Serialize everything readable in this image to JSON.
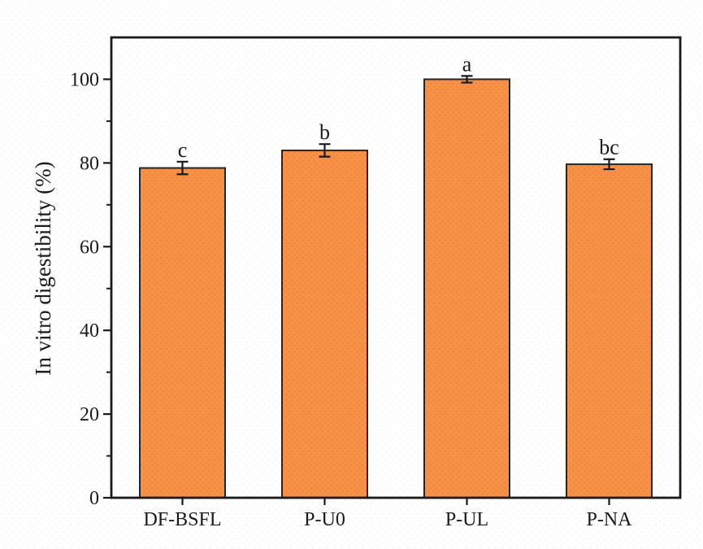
{
  "chart_data": {
    "type": "bar",
    "title": "",
    "xlabel": "",
    "ylabel": "In vitro digestibility (%)",
    "categories": [
      "DF-BSFL",
      "P-U0",
      "P-UL",
      "P-NA"
    ],
    "values": [
      78.8,
      83.0,
      100.0,
      79.7
    ],
    "errors": [
      1.5,
      1.5,
      0.8,
      1.2
    ],
    "significance_letters": [
      "c",
      "b",
      "a",
      "bc"
    ],
    "ylim": [
      0,
      110
    ],
    "yticks_major": [
      0,
      20,
      40,
      60,
      80,
      100
    ],
    "yticks_minor": [
      10,
      30,
      50,
      70,
      90
    ],
    "grid": false,
    "legend": "none",
    "colors": {
      "bar_fill": "#F79148",
      "bar_dot": "#EE8038",
      "bar_edge": "#262626",
      "axis": "#1A1A1A",
      "text": "#1A1A1A",
      "background": "#FFFFFF",
      "background_dot": "#EFEFEF"
    }
  }
}
